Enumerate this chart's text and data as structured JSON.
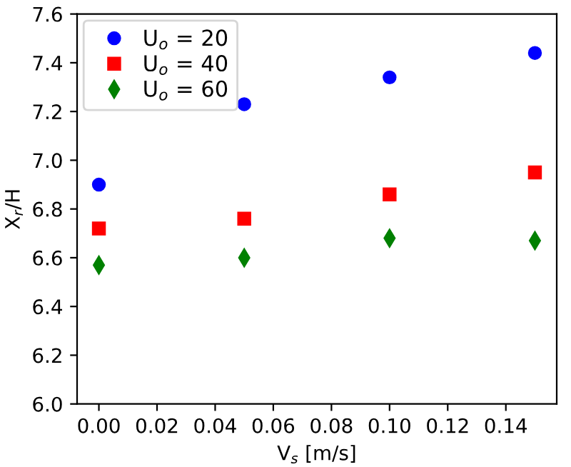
{
  "chart_data": {
    "type": "scatter",
    "xlabel": "V$_{s}$ [m/s]",
    "ylabel": "X$_{r}$/H",
    "x": [
      0.0,
      0.05,
      0.1,
      0.15
    ],
    "series": [
      {
        "name": "U$_{o}$ = 20",
        "color": "#0000ff",
        "marker": "circle",
        "values": [
          6.9,
          7.23,
          7.34,
          7.44
        ]
      },
      {
        "name": "U$_{o}$ = 40",
        "color": "#ff0000",
        "marker": "square",
        "values": [
          6.72,
          6.76,
          6.86,
          6.95
        ]
      },
      {
        "name": "U$_{o}$ = 60",
        "color": "#008000",
        "marker": "diamond",
        "values": [
          6.57,
          6.6,
          6.68,
          6.67
        ]
      }
    ],
    "xlim": [
      -0.0075,
      0.1575
    ],
    "xticks": [
      {
        "value": 0.0,
        "label": "0.00"
      },
      {
        "value": 0.02,
        "label": "0.02"
      },
      {
        "value": 0.04,
        "label": "0.04"
      },
      {
        "value": 0.06,
        "label": "0.06"
      },
      {
        "value": 0.08,
        "label": "0.08"
      },
      {
        "value": 0.1,
        "label": "0.10"
      },
      {
        "value": 0.12,
        "label": "0.12"
      },
      {
        "value": 0.14,
        "label": "0.14"
      }
    ],
    "ylim": [
      6.0,
      7.6
    ],
    "yticks": [
      {
        "value": 6.0,
        "label": "6.0"
      },
      6.2,
      6.4,
      6.6,
      6.8,
      {
        "value": 7.0,
        "label": "7.0"
      },
      7.2,
      7.4,
      7.6
    ],
    "grid": false,
    "legend": "top left"
  }
}
